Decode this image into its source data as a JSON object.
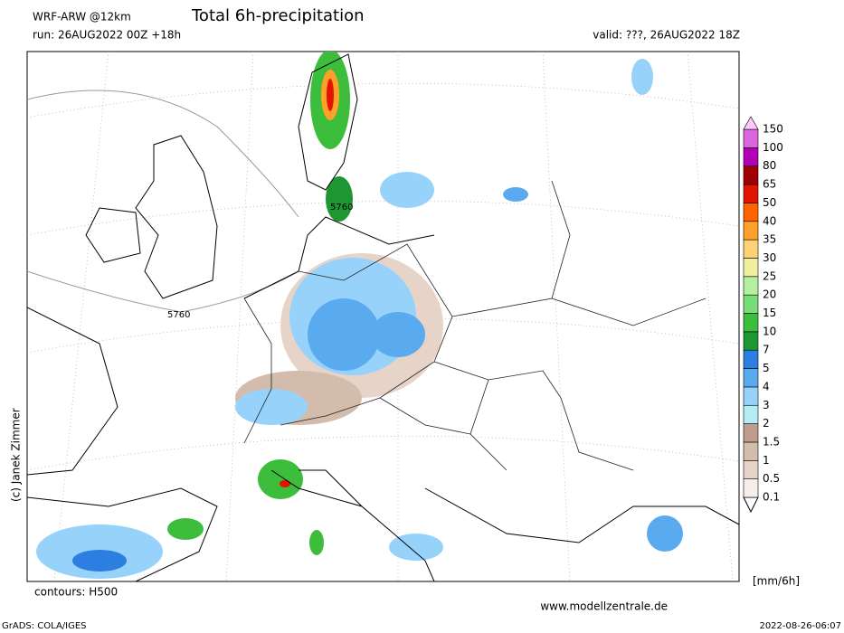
{
  "header": {
    "model": "WRF-ARW @12km",
    "title": "Total 6h-precipitation",
    "run": "run: 26AUG2022 00Z +18h",
    "valid": "valid: ???, 26AUG2022 18Z"
  },
  "map": {
    "contour_labels": [
      "5760",
      "5760"
    ],
    "copyright": "(c) Janek Zimmer",
    "contours_note": "contours: H500",
    "website": "www.modellzentrale.de"
  },
  "colorbar": {
    "levels": [
      0.1,
      0.5,
      1,
      1.5,
      2,
      3,
      4,
      5,
      7,
      10,
      15,
      20,
      25,
      30,
      35,
      40,
      50,
      65,
      80,
      100,
      150
    ],
    "colors": [
      "#f6eee8",
      "#e6d4c8",
      "#d4bcac",
      "#c09c8c",
      "#b4ecf4",
      "#96d2fa",
      "#5aaaf0",
      "#2c7ee0",
      "#1e9632",
      "#3cbe3c",
      "#78dc78",
      "#b4f0a0",
      "#f0f0a0",
      "#ffd278",
      "#ffa028",
      "#ff6400",
      "#e11400",
      "#a00000",
      "#b400b4",
      "#dc64dc",
      "#ffc8ff"
    ],
    "unit": "[mm/6h]"
  },
  "footer": {
    "software": "GrADS: COLA/IGES",
    "timestamp": "2022-08-26-06:07"
  }
}
